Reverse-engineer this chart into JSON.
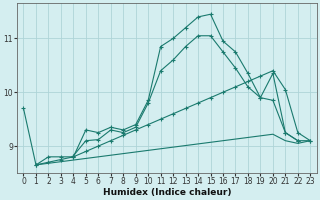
{
  "background_color": "#d4eef0",
  "grid_color": "#aed4d8",
  "line_color": "#1a7a6e",
  "xlabel": "Humidex (Indice chaleur)",
  "xlim": [
    -0.5,
    23.5
  ],
  "ylim": [
    8.5,
    11.65
  ],
  "yticks": [
    9,
    10,
    11
  ],
  "xticks": [
    0,
    1,
    2,
    3,
    4,
    5,
    6,
    7,
    8,
    9,
    10,
    11,
    12,
    13,
    14,
    15,
    16,
    17,
    18,
    19,
    20,
    21,
    22,
    23
  ],
  "series": [
    {
      "x": [
        0,
        1,
        2,
        3,
        4,
        5,
        6,
        7,
        8,
        9,
        10,
        11,
        12,
        13,
        14,
        15,
        16,
        17,
        18,
        19,
        20,
        21,
        22
      ],
      "y": [
        9.7,
        8.65,
        8.8,
        8.8,
        8.8,
        9.3,
        9.25,
        9.35,
        9.3,
        9.4,
        9.85,
        10.85,
        11.0,
        11.2,
        11.4,
        11.45,
        10.95,
        10.75,
        10.35,
        9.9,
        10.35,
        9.25,
        9.1
      ],
      "markers": true
    },
    {
      "x": [
        4,
        5,
        6,
        7,
        8,
        9,
        10,
        11,
        12,
        13,
        14,
        15,
        16,
        17,
        18,
        19,
        20,
        21,
        22,
        23
      ],
      "y": [
        8.82,
        9.1,
        9.12,
        9.3,
        9.25,
        9.35,
        9.8,
        10.4,
        10.6,
        10.85,
        11.05,
        11.05,
        10.75,
        10.45,
        10.1,
        9.9,
        9.85,
        9.25,
        9.1,
        9.1
      ],
      "markers": true
    },
    {
      "x": [
        1,
        2,
        3,
        4,
        5,
        6,
        7,
        8,
        9,
        10,
        11,
        12,
        13,
        14,
        15,
        16,
        17,
        18,
        19,
        20,
        21,
        22,
        23
      ],
      "y": [
        8.65,
        8.7,
        8.75,
        8.8,
        8.9,
        9.0,
        9.1,
        9.2,
        9.3,
        9.4,
        9.5,
        9.6,
        9.7,
        9.8,
        9.9,
        10.0,
        10.1,
        10.2,
        10.3,
        10.4,
        10.05,
        9.25,
        9.1
      ],
      "markers": true
    },
    {
      "x": [
        1,
        2,
        3,
        4,
        5,
        6,
        7,
        8,
        9,
        10,
        11,
        12,
        13,
        14,
        15,
        16,
        17,
        18,
        19,
        20,
        21,
        22,
        23
      ],
      "y": [
        8.65,
        8.68,
        8.71,
        8.74,
        8.77,
        8.8,
        8.83,
        8.86,
        8.89,
        8.92,
        8.95,
        8.98,
        9.01,
        9.04,
        9.07,
        9.1,
        9.13,
        9.16,
        9.19,
        9.22,
        9.1,
        9.05,
        9.1
      ],
      "markers": false
    }
  ]
}
